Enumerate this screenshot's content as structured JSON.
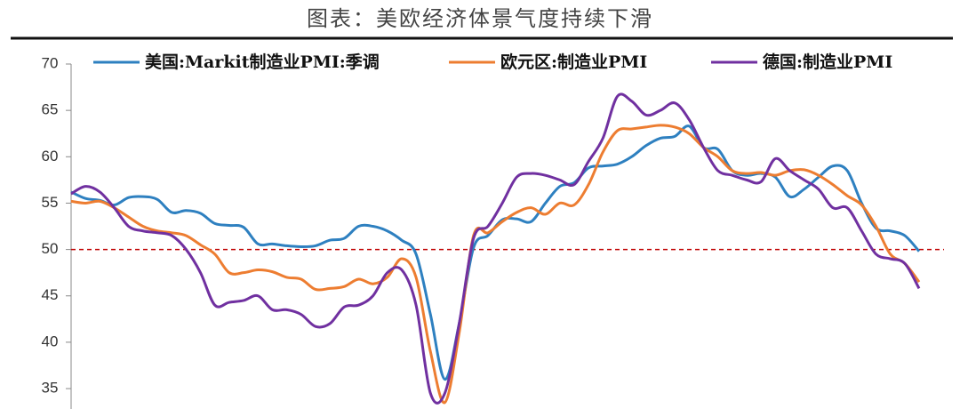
{
  "chart_data": {
    "type": "line",
    "title": "图表：美欧经济体景气度持续下滑",
    "ylim": [
      32.8,
      70
    ],
    "yticks": [
      35,
      40,
      45,
      50,
      55,
      60,
      65,
      70
    ],
    "reference_line": {
      "value": 50,
      "color": "#c00000"
    },
    "series": [
      {
        "name": "美国:Markit制造业PMI:季调",
        "color": "#2e80c0",
        "values": [
          56.2,
          55.5,
          55.3,
          54.8,
          55.6,
          55.7,
          55.4,
          54.0,
          54.2,
          53.9,
          52.8,
          52.6,
          52.4,
          50.6,
          50.6,
          50.4,
          50.3,
          50.4,
          51.0,
          51.2,
          52.5,
          52.5,
          52.0,
          51.0,
          49.5,
          43.0,
          36.0,
          42.0,
          50.2,
          51.5,
          53.2,
          53.3,
          53.0,
          55.0,
          56.8,
          57.2,
          58.8,
          59.0,
          59.2,
          60.0,
          61.2,
          62.0,
          62.2,
          63.3,
          61.0,
          60.8,
          58.5,
          58.0,
          58.2,
          57.8,
          55.7,
          56.5,
          57.8,
          59.0,
          58.5,
          55.0,
          52.3,
          52.0,
          51.5,
          49.8
        ]
      },
      {
        "name": "欧元区:制造业PMI",
        "color": "#ed7d31",
        "values": [
          55.2,
          55.0,
          55.2,
          54.5,
          53.5,
          52.5,
          52.0,
          51.8,
          51.5,
          50.5,
          49.5,
          47.5,
          47.5,
          47.8,
          47.6,
          47.0,
          46.8,
          45.7,
          45.8,
          46.0,
          46.8,
          46.3,
          47.0,
          49.0,
          47.0,
          39.0,
          33.5,
          41.0,
          51.5,
          51.8,
          53.0,
          54.0,
          54.5,
          53.8,
          55.0,
          54.8,
          57.0,
          60.5,
          62.8,
          63.0,
          63.2,
          63.4,
          63.2,
          62.5,
          61.0,
          60.0,
          58.5,
          58.2,
          58.3,
          58.0,
          58.5,
          58.6,
          58.0,
          57.0,
          55.8,
          54.8,
          52.5,
          49.5,
          48.5,
          46.5
        ]
      },
      {
        "name": "德国:制造业PMI",
        "color": "#7030a0",
        "values": [
          56.0,
          56.8,
          56.2,
          54.5,
          52.5,
          52.0,
          51.8,
          51.5,
          50.0,
          47.5,
          44.0,
          44.3,
          44.5,
          45.0,
          43.5,
          43.5,
          43.0,
          41.7,
          42.0,
          43.8,
          44.0,
          45.0,
          47.5,
          47.8,
          44.0,
          34.5,
          34.5,
          42.0,
          51.2,
          52.5,
          55.0,
          57.8,
          58.2,
          58.0,
          57.5,
          57.0,
          59.5,
          62.0,
          66.5,
          66.0,
          64.5,
          65.0,
          65.8,
          64.0,
          61.0,
          58.5,
          58.0,
          57.5,
          57.3,
          59.8,
          58.5,
          57.5,
          56.5,
          54.5,
          54.5,
          52.0,
          49.5,
          49.0,
          48.5,
          45.8
        ]
      }
    ]
  }
}
